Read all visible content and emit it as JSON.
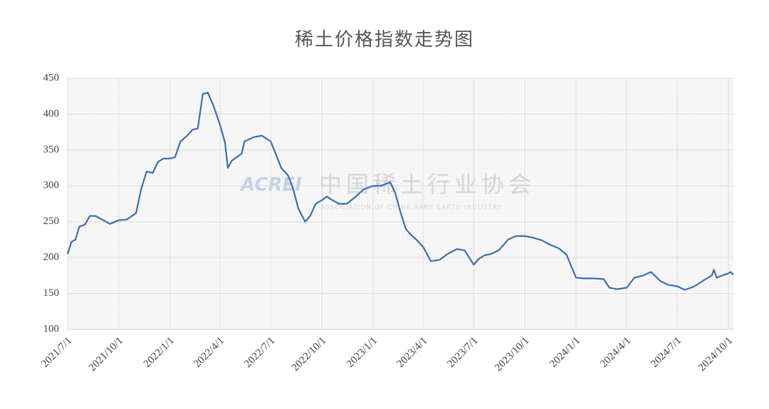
{
  "chart_data": {
    "type": "line",
    "title": "稀土价格指数走势图",
    "watermark": [
      "ACREI",
      "中国稀土行业协会",
      "ASSOCIATION OF CHINA RARE EARTH INDUSTRY"
    ],
    "x": [
      "2021-07-01",
      "2021-07-08",
      "2021-07-15",
      "2021-07-22",
      "2021-08-01",
      "2021-08-10",
      "2021-08-20",
      "2021-09-01",
      "2021-09-15",
      "2021-10-01",
      "2021-10-15",
      "2021-11-01",
      "2021-11-10",
      "2021-11-20",
      "2021-12-01",
      "2021-12-10",
      "2021-12-20",
      "2022-01-01",
      "2022-01-10",
      "2022-01-20",
      "2022-02-01",
      "2022-02-10",
      "2022-02-20",
      "2022-03-01",
      "2022-03-10",
      "2022-03-20",
      "2022-04-01",
      "2022-04-10",
      "2022-04-15",
      "2022-04-22",
      "2022-05-01",
      "2022-05-10",
      "2022-05-15",
      "2022-06-01",
      "2022-06-15",
      "2022-07-01",
      "2022-07-10",
      "2022-07-20",
      "2022-08-01",
      "2022-08-10",
      "2022-08-20",
      "2022-09-01",
      "2022-09-10",
      "2022-09-20",
      "2022-10-01",
      "2022-10-10",
      "2022-10-20",
      "2022-11-01",
      "2022-11-15",
      "2022-12-01",
      "2022-12-15",
      "2023-01-01",
      "2023-01-15",
      "2023-01-25",
      "2023-02-01",
      "2023-02-10",
      "2023-02-20",
      "2023-03-01",
      "2023-03-10",
      "2023-03-20",
      "2023-04-01",
      "2023-04-15",
      "2023-05-01",
      "2023-05-15",
      "2023-06-01",
      "2023-06-15",
      "2023-07-01",
      "2023-07-10",
      "2023-07-20",
      "2023-08-01",
      "2023-08-15",
      "2023-09-01",
      "2023-09-15",
      "2023-10-01",
      "2023-10-15",
      "2023-11-01",
      "2023-11-15",
      "2023-12-01",
      "2023-12-15",
      "2024-01-01",
      "2024-01-15",
      "2024-02-01",
      "2024-02-20",
      "2024-03-01",
      "2024-03-15",
      "2024-04-01",
      "2024-04-15",
      "2024-05-01",
      "2024-05-15",
      "2024-06-01",
      "2024-06-15",
      "2024-07-01",
      "2024-07-15",
      "2024-08-01",
      "2024-08-15",
      "2024-09-01",
      "2024-09-05",
      "2024-09-10",
      "2024-09-20",
      "2024-10-01",
      "2024-10-05",
      "2024-10-10"
    ],
    "series": [
      {
        "name": "稀土价格指数",
        "color": "#3a6fb0",
        "values": [
          205,
          222,
          225,
          243,
          246,
          258,
          258,
          253,
          247,
          252,
          253,
          262,
          295,
          320,
          318,
          333,
          338,
          338,
          340,
          362,
          370,
          378,
          380,
          428,
          430,
          412,
          385,
          360,
          325,
          335,
          340,
          345,
          362,
          368,
          370,
          362,
          345,
          325,
          315,
          297,
          268,
          250,
          258,
          275,
          280,
          285,
          280,
          275,
          275,
          285,
          295,
          300,
          300,
          303,
          305,
          290,
          262,
          240,
          232,
          225,
          215,
          195,
          197,
          205,
          212,
          210,
          190,
          198,
          203,
          205,
          210,
          225,
          230,
          230,
          228,
          224,
          218,
          213,
          204,
          172,
          171,
          171,
          170,
          158,
          156,
          158,
          172,
          175,
          180,
          167,
          162,
          160,
          155,
          160,
          167,
          175,
          183,
          172,
          175,
          178,
          180,
          176
        ]
      }
    ],
    "xlim": [
      "2021-07-01",
      "2024-10-10"
    ],
    "xticks": [
      {
        "value": "2021-07-01",
        "label": "2021/7/1"
      },
      {
        "value": "2021-10-01",
        "label": "2021/10/1"
      },
      {
        "value": "2022-01-01",
        "label": "2022/1/1"
      },
      {
        "value": "2022-04-01",
        "label": "2022/4/1"
      },
      {
        "value": "2022-07-01",
        "label": "2022/7/1"
      },
      {
        "value": "2022-10-01",
        "label": "2022/10/1"
      },
      {
        "value": "2023-01-01",
        "label": "2023/1/1"
      },
      {
        "value": "2023-04-01",
        "label": "2023/4/1"
      },
      {
        "value": "2023-07-01",
        "label": "2023/7/1"
      },
      {
        "value": "2023-10-01",
        "label": "2023/10/1"
      },
      {
        "value": "2024-01-01",
        "label": "2024/1/1"
      },
      {
        "value": "2024-04-01",
        "label": "2024/4/1"
      },
      {
        "value": "2024-07-01",
        "label": "2024/7/1"
      },
      {
        "value": "2024-10-01",
        "label": "2024/10/1"
      }
    ],
    "ylim": [
      100,
      450
    ],
    "yticks": [
      100,
      150,
      200,
      250,
      300,
      350,
      400,
      450
    ],
    "grid": true
  }
}
